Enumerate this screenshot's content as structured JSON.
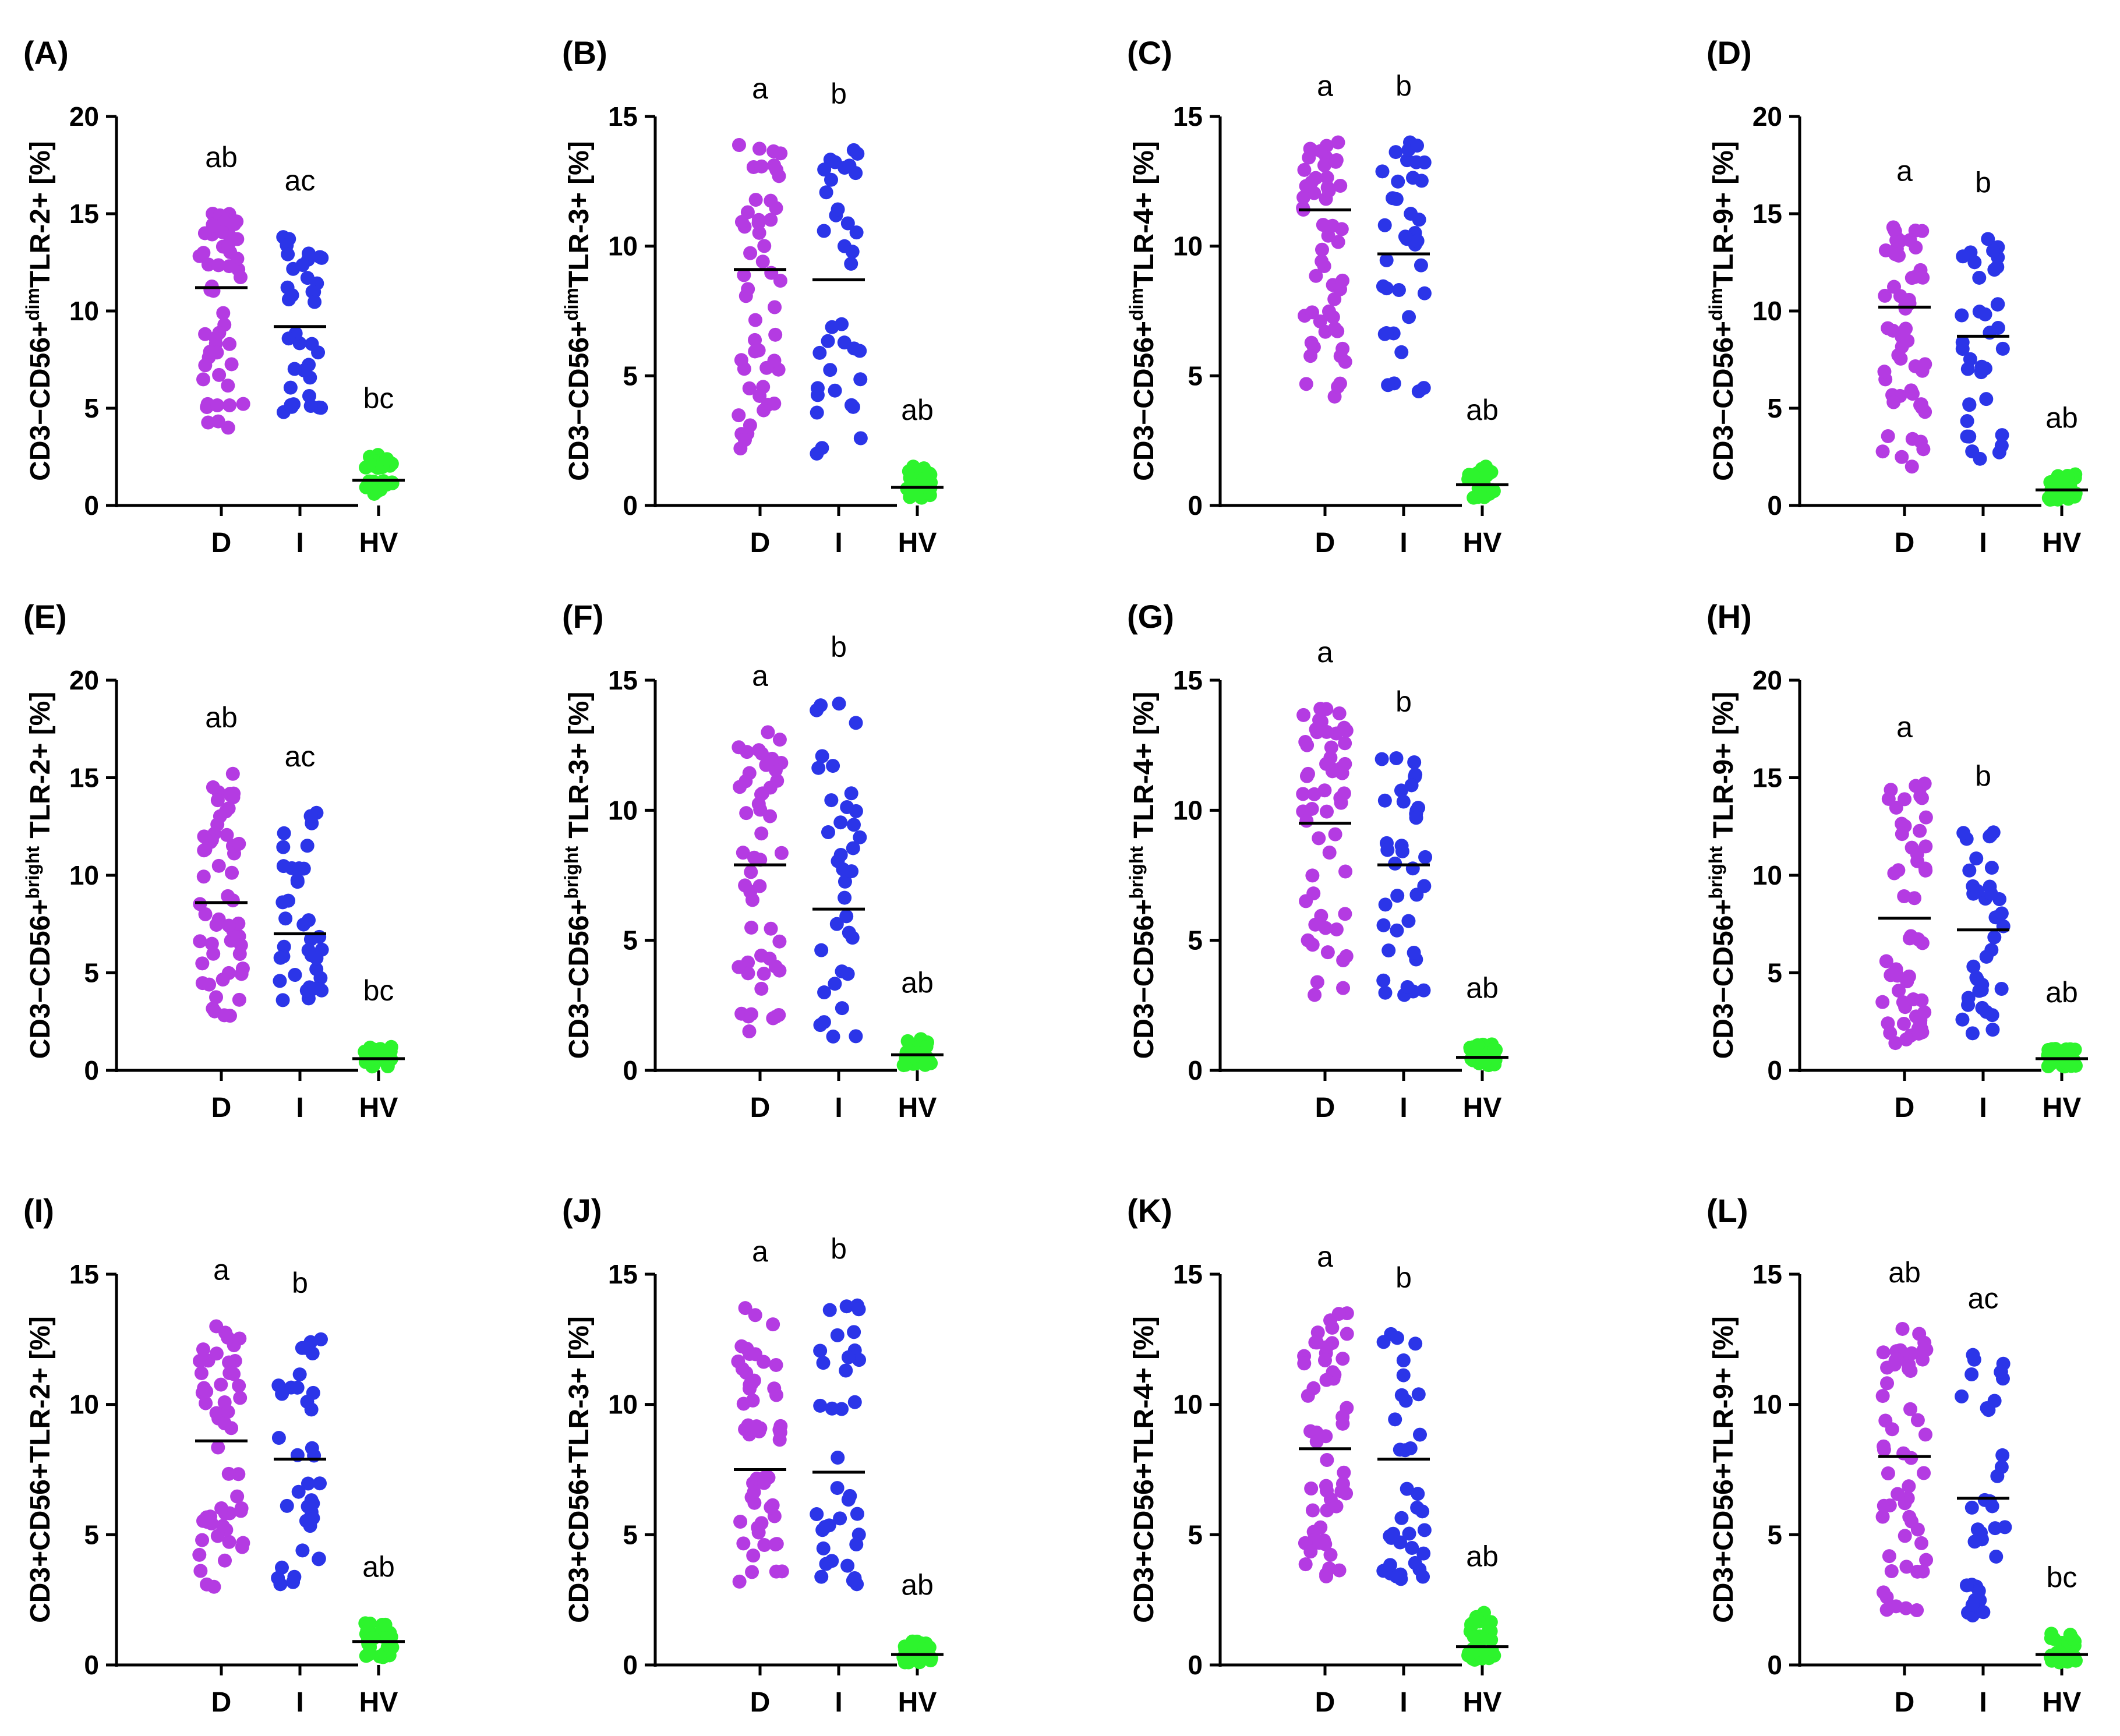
{
  "colors": {
    "D": "#b43be2",
    "I": "#2b35e8",
    "HV": "#2df42d",
    "median": "#000000"
  },
  "chart_data": [
    {
      "type": "scatter",
      "panel": "(A)",
      "ylabel": {
        "pre": "CD3−CD56+",
        "sup": "dim",
        "post": "TLR-2+ [%]"
      },
      "ylim": [
        0,
        20
      ],
      "yticks": [
        "0",
        "5",
        "10",
        "15",
        "20"
      ],
      "categories": [
        "D",
        "I",
        "HV"
      ],
      "groups": [
        {
          "name": "D",
          "n": 55,
          "min": 4.0,
          "max": 15.0,
          "median": 11.2,
          "letters": "ab"
        },
        {
          "name": "I",
          "n": 36,
          "min": 4.8,
          "max": 13.8,
          "median": 9.2,
          "letters": "ac"
        },
        {
          "name": "HV",
          "n": 30,
          "min": 0.6,
          "max": 2.6,
          "median": 1.3,
          "letters": "bc"
        }
      ]
    },
    {
      "type": "scatter",
      "panel": "(B)",
      "ylabel": {
        "pre": "CD3−CD56+",
        "sup": "dim",
        "post": "TLR-3+ [%]"
      },
      "ylim": [
        0,
        15
      ],
      "yticks": [
        "0",
        "5",
        "10",
        "15"
      ],
      "categories": [
        "D",
        "I",
        "HV"
      ],
      "groups": [
        {
          "name": "D",
          "n": 50,
          "min": 2.2,
          "max": 13.9,
          "median": 9.1,
          "letters": "a"
        },
        {
          "name": "I",
          "n": 36,
          "min": 2.0,
          "max": 13.7,
          "median": 8.7,
          "letters": "b"
        },
        {
          "name": "HV",
          "n": 30,
          "min": 0.3,
          "max": 1.5,
          "median": 0.7,
          "letters": "ab"
        }
      ]
    },
    {
      "type": "scatter",
      "panel": "(C)",
      "ylabel": {
        "pre": "CD3−CD56+",
        "sup": "dim",
        "post": "TLR-4+ [%]"
      },
      "ylim": [
        0,
        15
      ],
      "yticks": [
        "0",
        "5",
        "10",
        "15"
      ],
      "categories": [
        "D",
        "I",
        "HV"
      ],
      "groups": [
        {
          "name": "D",
          "n": 55,
          "min": 4.2,
          "max": 14.0,
          "median": 11.4,
          "letters": "a"
        },
        {
          "name": "I",
          "n": 36,
          "min": 4.4,
          "max": 14.0,
          "median": 9.7,
          "letters": "b"
        },
        {
          "name": "HV",
          "n": 30,
          "min": 0.3,
          "max": 1.5,
          "median": 0.8,
          "letters": "ab"
        }
      ]
    },
    {
      "type": "scatter",
      "panel": "(D)",
      "ylabel": {
        "pre": "CD3−CD56+",
        "sup": "dim",
        "post": "TLR-9+ [%]"
      },
      "ylim": [
        0,
        20
      ],
      "yticks": [
        "0",
        "5",
        "10",
        "15",
        "20"
      ],
      "categories": [
        "D",
        "I",
        "HV"
      ],
      "groups": [
        {
          "name": "D",
          "n": 55,
          "min": 2.0,
          "max": 14.3,
          "median": 10.2,
          "letters": "a"
        },
        {
          "name": "I",
          "n": 36,
          "min": 2.4,
          "max": 13.7,
          "median": 8.7,
          "letters": "b"
        },
        {
          "name": "HV",
          "n": 30,
          "min": 0.3,
          "max": 1.6,
          "median": 0.8,
          "letters": "ab"
        }
      ]
    },
    {
      "type": "scatter",
      "panel": "(E)",
      "ylabel": {
        "pre": "CD3−CD56+",
        "sup": "bright",
        "post": " TLR-2+ [%]"
      },
      "ylim": [
        0,
        20
      ],
      "yticks": [
        "0",
        "5",
        "10",
        "15",
        "20"
      ],
      "categories": [
        "D",
        "I",
        "HV"
      ],
      "groups": [
        {
          "name": "D",
          "n": 55,
          "min": 2.8,
          "max": 15.2,
          "median": 8.6,
          "letters": "ab"
        },
        {
          "name": "I",
          "n": 36,
          "min": 3.6,
          "max": 13.2,
          "median": 7.0,
          "letters": "ac"
        },
        {
          "name": "HV",
          "n": 30,
          "min": 0.2,
          "max": 1.2,
          "median": 0.6,
          "letters": "bc"
        }
      ]
    },
    {
      "type": "scatter",
      "panel": "(F)",
      "ylabel": {
        "pre": "CD3−CD56+",
        "sup": "bright",
        "post": " TLR-3+ [%]"
      },
      "ylim": [
        0,
        15
      ],
      "yticks": [
        "0",
        "5",
        "10",
        "15"
      ],
      "categories": [
        "D",
        "I",
        "HV"
      ],
      "groups": [
        {
          "name": "D",
          "n": 50,
          "min": 1.5,
          "max": 13.0,
          "median": 7.9,
          "letters": "a"
        },
        {
          "name": "I",
          "n": 36,
          "min": 1.3,
          "max": 14.1,
          "median": 6.2,
          "letters": "b"
        },
        {
          "name": "HV",
          "n": 30,
          "min": 0.2,
          "max": 1.2,
          "median": 0.6,
          "letters": "ab"
        }
      ]
    },
    {
      "type": "scatter",
      "panel": "(G)",
      "ylabel": {
        "pre": "CD3−CD56+",
        "sup": "bright",
        "post": " TLR-4+ [%]"
      },
      "ylim": [
        0,
        15
      ],
      "yticks": [
        "0",
        "5",
        "10",
        "15"
      ],
      "categories": [
        "D",
        "I",
        "HV"
      ],
      "groups": [
        {
          "name": "D",
          "n": 55,
          "min": 2.9,
          "max": 13.9,
          "median": 9.5,
          "letters": "a"
        },
        {
          "name": "I",
          "n": 36,
          "min": 2.9,
          "max": 12.0,
          "median": 7.9,
          "letters": "b"
        },
        {
          "name": "HV",
          "n": 30,
          "min": 0.2,
          "max": 1.0,
          "median": 0.5,
          "letters": "ab"
        }
      ]
    },
    {
      "type": "scatter",
      "panel": "(H)",
      "ylabel": {
        "pre": "CD3−CD56+",
        "sup": "bright",
        "post": " TLR-9+ [%]"
      },
      "ylim": [
        0,
        20
      ],
      "yticks": [
        "0",
        "5",
        "10",
        "15",
        "20"
      ],
      "categories": [
        "D",
        "I",
        "HV"
      ],
      "groups": [
        {
          "name": "D",
          "n": 55,
          "min": 1.4,
          "max": 14.7,
          "median": 7.8,
          "letters": "a"
        },
        {
          "name": "I",
          "n": 36,
          "min": 1.9,
          "max": 12.2,
          "median": 7.2,
          "letters": "b"
        },
        {
          "name": "HV",
          "n": 30,
          "min": 0.2,
          "max": 1.1,
          "median": 0.6,
          "letters": "ab"
        }
      ]
    },
    {
      "type": "scatter",
      "panel": "(I)",
      "ylabel": {
        "pre": "CD3+CD56+TLR-2+ [%]",
        "sup": "",
        "post": ""
      },
      "ylim": [
        0,
        15
      ],
      "yticks": [
        "0",
        "5",
        "10",
        "15"
      ],
      "categories": [
        "D",
        "I",
        "HV"
      ],
      "groups": [
        {
          "name": "D",
          "n": 55,
          "min": 3.0,
          "max": 13.0,
          "median": 8.6,
          "letters": "a"
        },
        {
          "name": "I",
          "n": 36,
          "min": 3.1,
          "max": 12.5,
          "median": 7.9,
          "letters": "b"
        },
        {
          "name": "HV",
          "n": 30,
          "min": 0.3,
          "max": 1.6,
          "median": 0.9,
          "letters": "ab"
        }
      ]
    },
    {
      "type": "scatter",
      "panel": "(J)",
      "ylabel": {
        "pre": "CD3+CD56+TLR-3+ [%]",
        "sup": "",
        "post": ""
      },
      "ylim": [
        0,
        15
      ],
      "yticks": [
        "0",
        "5",
        "10",
        "15"
      ],
      "categories": [
        "D",
        "I",
        "HV"
      ],
      "groups": [
        {
          "name": "D",
          "n": 55,
          "min": 3.2,
          "max": 13.7,
          "median": 7.5,
          "letters": "a"
        },
        {
          "name": "I",
          "n": 36,
          "min": 3.1,
          "max": 13.8,
          "median": 7.4,
          "letters": "b"
        },
        {
          "name": "HV",
          "n": 30,
          "min": 0.1,
          "max": 0.9,
          "median": 0.4,
          "letters": "ab"
        }
      ]
    },
    {
      "type": "scatter",
      "panel": "(K)",
      "ylabel": {
        "pre": "CD3+CD56+TLR-4+ [%]",
        "sup": "",
        "post": ""
      },
      "ylim": [
        0,
        15
      ],
      "yticks": [
        "0",
        "5",
        "10",
        "15"
      ],
      "categories": [
        "D",
        "I",
        "HV"
      ],
      "groups": [
        {
          "name": "D",
          "n": 55,
          "min": 3.4,
          "max": 13.5,
          "median": 8.3,
          "letters": "a"
        },
        {
          "name": "I",
          "n": 36,
          "min": 3.3,
          "max": 12.7,
          "median": 7.9,
          "letters": "b"
        },
        {
          "name": "HV",
          "n": 30,
          "min": 0.2,
          "max": 2.0,
          "median": 0.7,
          "letters": "ab"
        }
      ]
    },
    {
      "type": "scatter",
      "panel": "(L)",
      "ylabel": {
        "pre": "CD3+CD56+TLR-9+ [%]",
        "sup": "",
        "post": ""
      },
      "ylim": [
        0,
        15
      ],
      "yticks": [
        "0",
        "5",
        "10",
        "15"
      ],
      "categories": [
        "D",
        "I",
        "HV"
      ],
      "groups": [
        {
          "name": "D",
          "n": 55,
          "min": 2.1,
          "max": 12.9,
          "median": 8.0,
          "letters": "ab"
        },
        {
          "name": "I",
          "n": 36,
          "min": 1.9,
          "max": 11.9,
          "median": 6.4,
          "letters": "ac"
        },
        {
          "name": "HV",
          "n": 30,
          "min": 0.1,
          "max": 1.2,
          "median": 0.4,
          "letters": "bc"
        }
      ]
    }
  ]
}
